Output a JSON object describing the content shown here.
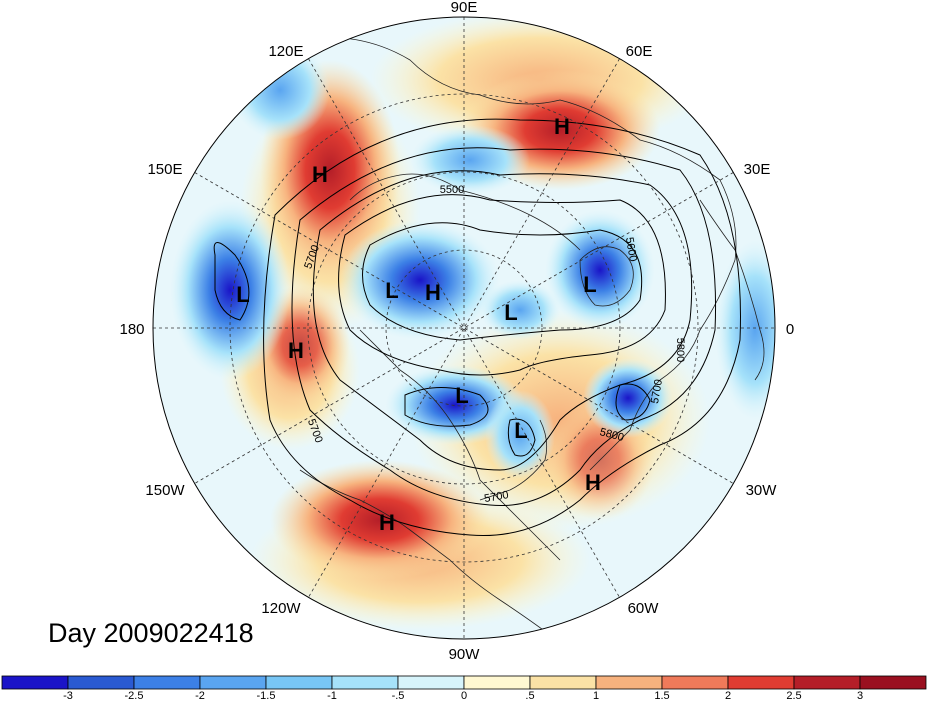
{
  "title": "Day 2009022418",
  "longitude_labels": {
    "top": "90E",
    "upper_left": "120E",
    "upper_right": "60E",
    "left_upper": "150E",
    "right_upper": "30E",
    "left": "180",
    "right": "0",
    "left_lower": "150W",
    "right_lower": "30W",
    "lower_left": "120W",
    "lower_right": "60W",
    "bottom": "90W"
  },
  "pressure_centers": [
    {
      "type": "H",
      "label": "H"
    },
    {
      "type": "H",
      "label": "H"
    },
    {
      "type": "L",
      "label": "L"
    },
    {
      "type": "L",
      "label": "L"
    },
    {
      "type": "H",
      "label": "H"
    },
    {
      "type": "L",
      "label": "L"
    },
    {
      "type": "L",
      "label": "L"
    },
    {
      "type": "H",
      "label": "H"
    },
    {
      "type": "L",
      "label": "L"
    },
    {
      "type": "L",
      "label": "L"
    },
    {
      "type": "H",
      "label": "H"
    },
    {
      "type": "H",
      "label": "H"
    }
  ],
  "contour_labels": [
    "5500",
    "5600",
    "5700",
    "5800",
    "5700",
    "5700",
    "5800",
    "5700"
  ],
  "colorbar": {
    "ticks": [
      "-3",
      "-2.5",
      "-2",
      "-1.5",
      "-1",
      "-.5",
      "0",
      ".5",
      "1",
      "1.5",
      "2",
      "2.5",
      "3"
    ],
    "colors": [
      "#1a14c8",
      "#2a5ad2",
      "#3c80e6",
      "#5aa5f0",
      "#78c6f5",
      "#a6e2fa",
      "#d7f4fb",
      "#fff8d2",
      "#fbe2a6",
      "#f7b27e",
      "#ef7a5a",
      "#e03c32",
      "#b41e28",
      "#9a1020"
    ]
  }
}
